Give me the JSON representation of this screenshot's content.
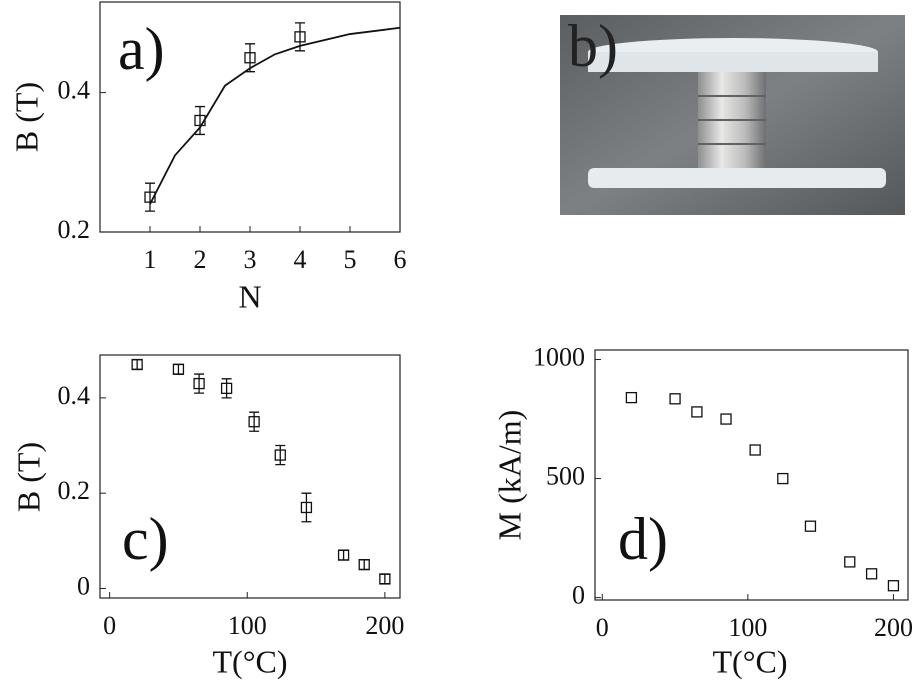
{
  "chart_data": [
    {
      "type": "line",
      "panel_label": "a)",
      "x_label": "N",
      "y_label": "B (T)",
      "xlim": [
        0,
        6
      ],
      "ylim": [
        0.2,
        0.53
      ],
      "xticks": [
        1,
        2,
        3,
        4,
        5,
        6
      ],
      "yticks": [
        0.2,
        0.4
      ],
      "series": [
        {
          "type": "errorbar",
          "color": "#111111",
          "x": [
            1,
            2,
            3,
            4
          ],
          "values": [
            0.25,
            0.36,
            0.45,
            0.48
          ],
          "errors": [
            0.02,
            0.02,
            0.02,
            0.02
          ]
        },
        {
          "type": "line",
          "color": "#111111",
          "x": [
            1,
            1.5,
            2,
            2.5,
            3,
            3.5,
            4,
            5,
            6
          ],
          "values": [
            0.24,
            0.31,
            0.35,
            0.41,
            0.435,
            0.455,
            0.467,
            0.484,
            0.493
          ]
        }
      ]
    },
    {
      "type": "scatter",
      "panel_label": "c)",
      "x_label": "T(°C)",
      "y_label": "B (T)",
      "xlim": [
        -7,
        211
      ],
      "ylim": [
        -0.02,
        0.49
      ],
      "xticks": [
        0,
        100,
        200
      ],
      "yticks": [
        0,
        0.2,
        0.4
      ],
      "series": [
        {
          "type": "errorbar",
          "color": "#111111",
          "x": [
            20,
            50,
            65,
            85,
            105,
            124,
            143,
            170,
            185,
            200
          ],
          "values": [
            0.47,
            0.46,
            0.43,
            0.42,
            0.35,
            0.28,
            0.17,
            0.07,
            0.05,
            0.02
          ],
          "errors": [
            0.01,
            0.01,
            0.02,
            0.02,
            0.02,
            0.02,
            0.03,
            0.01,
            0.01,
            0.01
          ]
        }
      ]
    },
    {
      "type": "scatter",
      "panel_label": "d)",
      "x_label": "T(°C)",
      "y_label": "M (kA/m)",
      "xlim": [
        -5,
        210
      ],
      "ylim": [
        -10,
        1040
      ],
      "xticks": [
        0,
        100,
        200
      ],
      "yticks": [
        0,
        500,
        1000
      ],
      "series": [
        {
          "type": "scatter",
          "color": "#111111",
          "x": [
            20,
            50,
            65,
            85,
            105,
            124,
            143,
            170,
            185,
            200
          ],
          "values": [
            840,
            835,
            780,
            750,
            620,
            500,
            300,
            150,
            100,
            50
          ]
        }
      ]
    }
  ],
  "photo": {
    "panel_label": "b)"
  }
}
